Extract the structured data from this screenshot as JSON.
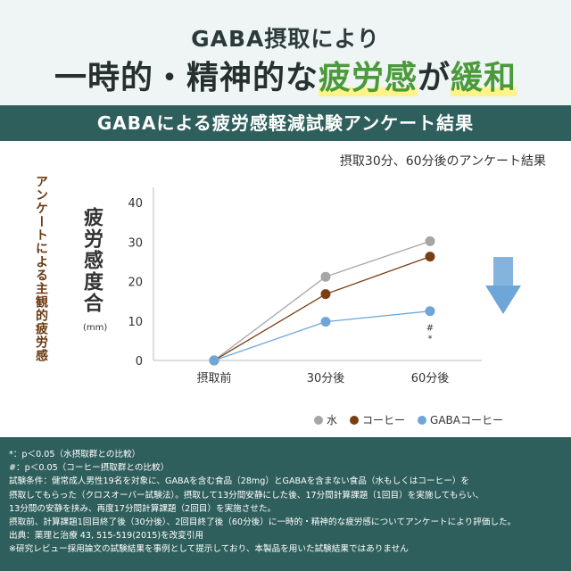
{
  "header": {
    "line1": "GABA摂取により",
    "line2_prefix": "一時的・精神的な",
    "line2_highlight1": "疲労感",
    "line2_mid": "が",
    "line2_highlight2": "緩和"
  },
  "banner": "GABAによる疲労感軽減試験アンケート結果",
  "subtitle": "摂取30分、60分後のアンケート結果",
  "side_label": "アンケートによる主観的疲労感",
  "y_title": "疲労感度合",
  "y_unit": "(mm)",
  "significance": {
    "hash": "#",
    "star": "*"
  },
  "chart_data": {
    "type": "line",
    "categories": [
      "摂取前",
      "30分後",
      "60分後"
    ],
    "ylim": [
      0,
      40
    ],
    "yticks": [
      0,
      10,
      20,
      30,
      40
    ],
    "grid": false,
    "legend_position": "bottom-right",
    "series": [
      {
        "name": "水",
        "color": "#a6a6a6",
        "values": [
          0,
          21.2,
          30.2
        ]
      },
      {
        "name": "コーヒー",
        "color": "#7a3e12",
        "values": [
          0,
          16.8,
          26.3
        ]
      },
      {
        "name": "GABAコーヒー",
        "color": "#6fa6d8",
        "values": [
          0,
          9.8,
          12.5
        ]
      }
    ]
  },
  "colors": {
    "band": "#2f5f5c",
    "arrow": "#6fa6d8",
    "highlight": "#4a9a3a"
  },
  "footer": [
    "*：p＜0.05（水摂取群との比較）",
    "#：p＜0.05（コーヒー摂取群との比較）",
    "試験条件：健常成人男性19名を対象に、GABAを含む食品（28mg）とGABAを含まない食品（水もしくはコーヒー）を",
    "摂取してもらった（クロスオーバー試験法）。摂取して13分間安静にした後、17分間計算課題（1回目）を実施してもらい、",
    "13分間の安静を挟み、再度17分間計算課題（2回目）を実施させた。",
    "摂取前、計算課題1回目終了後（30分後）、2回目終了後（60分後）に一時的・精神的な疲労感についてアンケートにより評価した。",
    "出典：薬理と治療 43, 515-519(2015)を改変引用",
    "※研究レビュー採用論文の試験結果を事例として提示しており、本製品を用いた試験結果ではありません"
  ]
}
